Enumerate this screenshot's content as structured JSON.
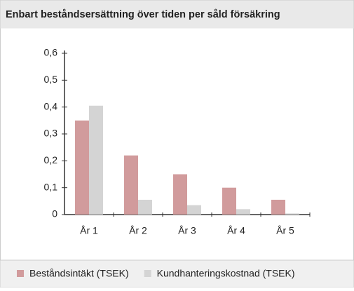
{
  "chart_data": {
    "type": "bar",
    "title": "Enbart beståndsersättning över tiden per såld försäkring",
    "categories": [
      "År 1",
      "År 2",
      "År 3",
      "År 4",
      "År 5"
    ],
    "series": [
      {
        "name": "Beståndsintäkt (TSEK)",
        "color": "#d19b9c",
        "values": [
          0.35,
          0.22,
          0.15,
          0.1,
          0.055
        ]
      },
      {
        "name": "Kundhanteringskostnad (TSEK)",
        "color": "#d4d4d4",
        "values": [
          0.405,
          0.055,
          0.035,
          0.02,
          0.004
        ]
      }
    ],
    "ylim": [
      0,
      0.6
    ],
    "yticks": [
      0,
      {
        "value": 0.1,
        "label": "0,1"
      },
      {
        "value": 0.2,
        "label": "0,2"
      },
      {
        "value": 0.3,
        "label": "0,3"
      },
      {
        "value": 0.4,
        "label": "0,4"
      },
      {
        "value": 0.5,
        "label": "0,5"
      },
      {
        "value": 0.6,
        "label": "0,6"
      }
    ],
    "legend": "bottom"
  }
}
